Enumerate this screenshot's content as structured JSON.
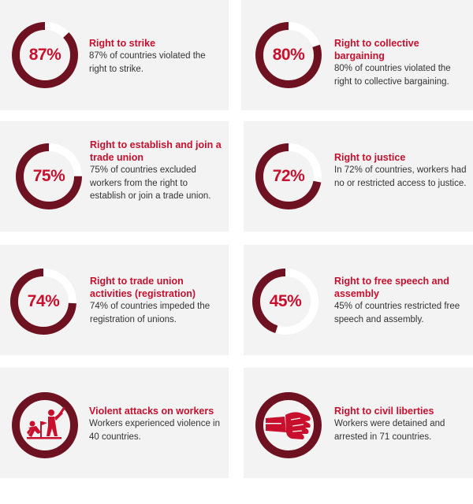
{
  "colors": {
    "ring": "#6e1221",
    "track": "#ffffff",
    "accent": "#c8102e",
    "card": "#f3f3f3"
  },
  "cards": [
    {
      "pct_label": "87%",
      "value": 87,
      "title": "Right to strike",
      "desc": "87% of countries violated the right to strike."
    },
    {
      "pct_label": "80%",
      "value": 80,
      "title": "Right to collective bargaining",
      "desc": "80% of countries violated the right to collective bargaining."
    },
    {
      "pct_label": "75%",
      "value": 75,
      "title": "Right to establish and join a trade union",
      "desc": "75% of countries excluded workers from the right to establish or join a trade union."
    },
    {
      "pct_label": "72%",
      "value": 72,
      "title": "Right to justice",
      "desc": "In 72% of countries, workers had no or restricted access to justice."
    },
    {
      "pct_label": "74%",
      "value": 74,
      "title": "Right to trade union activities (registration)",
      "desc": "74% of countries impeded the registration of unions."
    },
    {
      "pct_label": "45%",
      "value": 45,
      "title": "Right to free speech and assembly",
      "desc": "45% of countries restricted free speech and assembly."
    },
    {
      "icon": "violent-attack-icon",
      "title": "Violent attacks on workers",
      "desc": "Workers experienced violence in 40 countries."
    },
    {
      "icon": "raised-fist-icon",
      "title": "Right to civil liberties",
      "desc": "Workers were detained and arrested in 71 countries."
    }
  ]
}
